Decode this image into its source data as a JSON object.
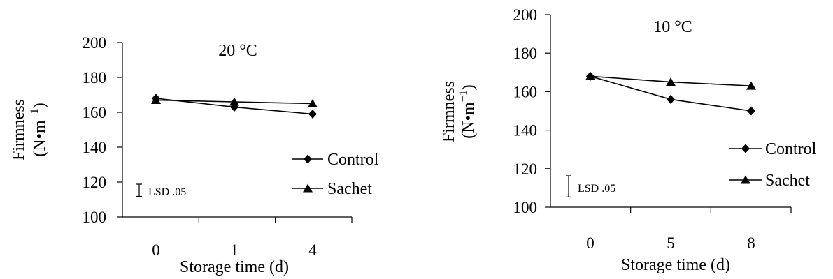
{
  "chart_data": [
    {
      "type": "line",
      "title": "20 °C",
      "xlabel": "Storage time (d)",
      "ylabel": "Firmness",
      "ylabel_unit_base": "(N•m",
      "ylabel_unit_exp": "−1",
      "ylabel_unit_close": ")",
      "categories": [
        "0",
        "1",
        "4"
      ],
      "ylim": [
        100,
        200
      ],
      "yticks": [
        "100",
        "120",
        "140",
        "160",
        "180",
        "200"
      ],
      "series": [
        {
          "name": "Control",
          "marker": "diamond",
          "values": [
            168,
            163,
            159
          ]
        },
        {
          "name": "Sachet",
          "marker": "triangle",
          "values": [
            167,
            166,
            165
          ]
        }
      ],
      "lsd": {
        "label": "LSD .05",
        "value": 7
      },
      "legend": "right",
      "grid": false
    },
    {
      "type": "line",
      "title": "10 °C",
      "xlabel": "Storage time (d)",
      "ylabel": "Firmness",
      "ylabel_unit_base": "(N•m",
      "ylabel_unit_exp": "−1",
      "ylabel_unit_close": ")",
      "categories": [
        "0",
        "5",
        "8"
      ],
      "ylim": [
        100,
        200
      ],
      "yticks": [
        "100",
        "120",
        "140",
        "160",
        "180",
        "200"
      ],
      "series": [
        {
          "name": "Control",
          "marker": "diamond",
          "values": [
            168,
            156,
            150
          ]
        },
        {
          "name": "Sachet",
          "marker": "triangle",
          "values": [
            168,
            165,
            163
          ]
        }
      ],
      "lsd": {
        "label": "LSD .05",
        "value": 11
      },
      "legend": "right",
      "grid": false
    }
  ]
}
